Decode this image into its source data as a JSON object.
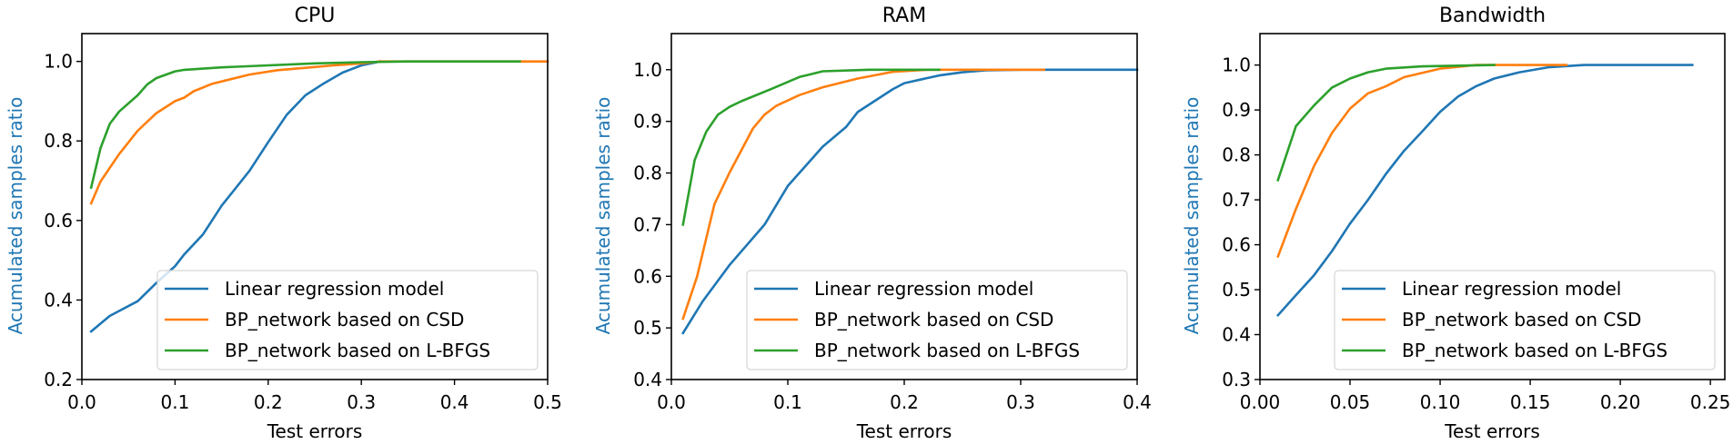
{
  "chart_data": [
    {
      "type": "line",
      "title": "CPU",
      "xlabel": "Test errors",
      "ylabel": "Acumulated samples ratio",
      "xlim": [
        0,
        0.5
      ],
      "ylim": [
        0.2,
        1.07
      ],
      "xticks": [
        0,
        0.1,
        0.2,
        0.3,
        0.4,
        0.5
      ],
      "xtick_labels": [
        "0.0",
        "0.1",
        "0.2",
        "0.3",
        "0.4",
        "0.5"
      ],
      "yticks": [
        0.2,
        0.4,
        0.6,
        0.8,
        1.0
      ],
      "ytick_labels": [
        "0.2",
        "0.4",
        "0.6",
        "0.8",
        "1.0"
      ],
      "grid": false,
      "legend_position": "lower-right",
      "series": [
        {
          "name": "Linear regression model",
          "color": "#1f77b4",
          "x": [
            0.01,
            0.03,
            0.06,
            0.08,
            0.1,
            0.11,
            0.13,
            0.15,
            0.18,
            0.2,
            0.22,
            0.24,
            0.26,
            0.28,
            0.3,
            0.32
          ],
          "y": [
            0.321,
            0.36,
            0.397,
            0.443,
            0.485,
            0.515,
            0.565,
            0.637,
            0.725,
            0.797,
            0.866,
            0.915,
            0.945,
            0.972,
            0.99,
            1.0
          ]
        },
        {
          "name": "BP_network based on CSD",
          "color": "#ff7f0e",
          "x": [
            0.01,
            0.02,
            0.04,
            0.06,
            0.08,
            0.1,
            0.11,
            0.12,
            0.14,
            0.18,
            0.21,
            0.24,
            0.27,
            0.3,
            0.32,
            0.4,
            0.5
          ],
          "y": [
            0.643,
            0.698,
            0.767,
            0.826,
            0.87,
            0.9,
            0.909,
            0.925,
            0.944,
            0.967,
            0.978,
            0.984,
            0.99,
            0.995,
            1.0,
            1.0,
            1.0
          ]
        },
        {
          "name": "BP_network based on L-BFGS",
          "color": "#2ca02c",
          "x": [
            0.01,
            0.02,
            0.03,
            0.04,
            0.06,
            0.07,
            0.08,
            0.1,
            0.11,
            0.15,
            0.2,
            0.25,
            0.3,
            0.35,
            0.4,
            0.47
          ],
          "y": [
            0.683,
            0.782,
            0.843,
            0.874,
            0.915,
            0.942,
            0.958,
            0.975,
            0.979,
            0.985,
            0.99,
            0.995,
            0.998,
            1.0,
            1.0,
            1.0
          ]
        }
      ]
    },
    {
      "type": "line",
      "title": "RAM",
      "xlabel": "Test errors",
      "ylabel": "Acumulated samples ratio",
      "xlim": [
        0,
        0.4
      ],
      "ylim": [
        0.4,
        1.07
      ],
      "xticks": [
        0,
        0.1,
        0.2,
        0.3,
        0.4
      ],
      "xtick_labels": [
        "0.0",
        "0.1",
        "0.2",
        "0.3",
        "0.4"
      ],
      "yticks": [
        0.4,
        0.5,
        0.6,
        0.7,
        0.8,
        0.9,
        1.0
      ],
      "ytick_labels": [
        "0.4",
        "0.5",
        "0.6",
        "0.7",
        "0.8",
        "0.9",
        "1.0"
      ],
      "grid": false,
      "legend_position": "lower-right",
      "series": [
        {
          "name": "Linear regression model",
          "color": "#1f77b4",
          "x": [
            0.01,
            0.027,
            0.05,
            0.08,
            0.1,
            0.13,
            0.15,
            0.16,
            0.19,
            0.2,
            0.23,
            0.25,
            0.27,
            0.3,
            0.35,
            0.4
          ],
          "y": [
            0.49,
            0.552,
            0.622,
            0.7,
            0.775,
            0.851,
            0.889,
            0.918,
            0.962,
            0.974,
            0.989,
            0.995,
            0.999,
            1.0,
            1.0,
            1.0
          ]
        },
        {
          "name": "BP_network based on CSD",
          "color": "#ff7f0e",
          "x": [
            0.01,
            0.022,
            0.037,
            0.05,
            0.07,
            0.08,
            0.09,
            0.11,
            0.13,
            0.16,
            0.19,
            0.22,
            0.26,
            0.32
          ],
          "y": [
            0.518,
            0.599,
            0.74,
            0.801,
            0.886,
            0.913,
            0.93,
            0.951,
            0.966,
            0.983,
            0.996,
            1.0,
            1.0,
            1.0
          ]
        },
        {
          "name": "BP_network based on L-BFGS",
          "color": "#2ca02c",
          "x": [
            0.01,
            0.02,
            0.03,
            0.04,
            0.05,
            0.06,
            0.085,
            0.11,
            0.13,
            0.17,
            0.23
          ],
          "y": [
            0.7,
            0.825,
            0.88,
            0.913,
            0.928,
            0.939,
            0.962,
            0.986,
            0.997,
            1.0,
            1.0
          ]
        }
      ]
    },
    {
      "type": "line",
      "title": "Bandwidth",
      "xlabel": "Test errors",
      "ylabel": "Acumulated samples ratio",
      "xlim": [
        0,
        0.258
      ],
      "ylim": [
        0.3,
        1.07
      ],
      "xticks": [
        0,
        0.05,
        0.1,
        0.15,
        0.2,
        0.25
      ],
      "xtick_labels": [
        "0.00",
        "0.05",
        "0.10",
        "0.15",
        "0.20",
        "0.25"
      ],
      "yticks": [
        0.3,
        0.4,
        0.5,
        0.6,
        0.7,
        0.8,
        0.9,
        1.0
      ],
      "ytick_labels": [
        "0.3",
        "0.4",
        "0.5",
        "0.6",
        "0.7",
        "0.8",
        "0.9",
        "1.0"
      ],
      "grid": false,
      "legend_position": "lower-right",
      "series": [
        {
          "name": "Linear regression model",
          "color": "#1f77b4",
          "x": [
            0.01,
            0.02,
            0.03,
            0.04,
            0.05,
            0.06,
            0.07,
            0.08,
            0.09,
            0.1,
            0.11,
            0.12,
            0.13,
            0.144,
            0.16,
            0.18,
            0.2,
            0.24
          ],
          "y": [
            0.443,
            0.488,
            0.532,
            0.586,
            0.647,
            0.7,
            0.758,
            0.809,
            0.852,
            0.896,
            0.93,
            0.953,
            0.97,
            0.984,
            0.995,
            1.0,
            1.0,
            1.0
          ]
        },
        {
          "name": "BP_network based on CSD",
          "color": "#ff7f0e",
          "x": [
            0.01,
            0.02,
            0.03,
            0.04,
            0.05,
            0.06,
            0.07,
            0.08,
            0.1,
            0.12,
            0.17
          ],
          "y": [
            0.574,
            0.68,
            0.775,
            0.849,
            0.903,
            0.937,
            0.953,
            0.973,
            0.992,
            1.0,
            1.0
          ]
        },
        {
          "name": "BP_network based on L-BFGS",
          "color": "#2ca02c",
          "x": [
            0.01,
            0.02,
            0.03,
            0.04,
            0.05,
            0.06,
            0.07,
            0.09,
            0.13
          ],
          "y": [
            0.744,
            0.864,
            0.91,
            0.95,
            0.97,
            0.984,
            0.992,
            0.997,
            1.0
          ]
        }
      ]
    }
  ]
}
